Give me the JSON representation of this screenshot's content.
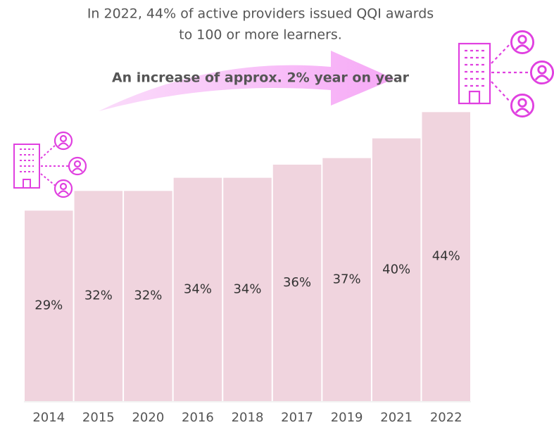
{
  "chart_data": {
    "type": "bar",
    "title": "In 2022, 44% of active providers issued QQI awards",
    "title_line2": "to 100 or more learners.",
    "annotation": "An increase of approx. 2% year on year",
    "categories": [
      "2014",
      "2015",
      "2020",
      "2016",
      "2018",
      "2017",
      "2019",
      "2021",
      "2022"
    ],
    "values": [
      29,
      32,
      32,
      34,
      34,
      36,
      37,
      40,
      44
    ],
    "value_labels": [
      "29%",
      "32%",
      "32%",
      "34%",
      "34%",
      "36%",
      "37%",
      "40%",
      "44%"
    ],
    "color": "#f0d4de",
    "ylim": [
      0,
      45
    ]
  }
}
